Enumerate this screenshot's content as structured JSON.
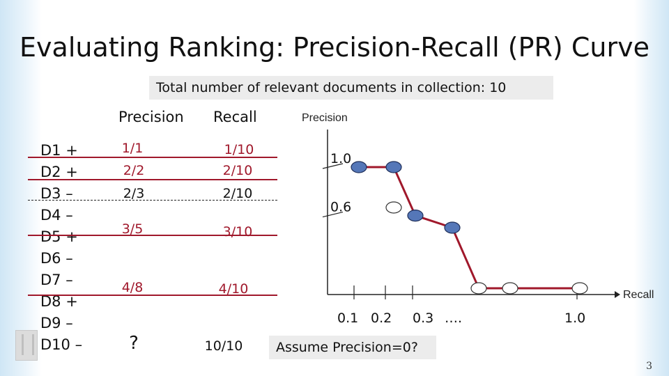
{
  "slide": {
    "title": "Evaluating Ranking: Precision-Recall (PR) Curve",
    "total_note": "Total  number of relevant documents in collection:  10",
    "assume_note": "Assume Precision=0?",
    "page_number": "3"
  },
  "table": {
    "precision_header": "Precision",
    "recall_header": "Recall",
    "docs": [
      "D1 +",
      "D2 +",
      "D3 –",
      "D4 –",
      "D5 +",
      "D6 –",
      "D7 –",
      "D8 +",
      "D9 –",
      "D10 –"
    ],
    "entries": [
      {
        "precision": "1/1",
        "recall": "1/10"
      },
      {
        "precision": "2/2",
        "recall": "2/10"
      },
      {
        "precision": "2/3",
        "recall": "2/10"
      },
      {
        "precision": "3/5",
        "recall": "3/10"
      },
      {
        "precision": "4/8",
        "recall": "4/10"
      },
      {
        "precision": "?",
        "recall": "10/10"
      }
    ]
  },
  "chart_data": {
    "type": "line",
    "xlabel": "Recall",
    "ylabel": "Precision",
    "x_tick_labels": [
      "0.1",
      "0.2",
      "0.3",
      "….",
      "1.0"
    ],
    "y_tick_labels": [
      "1.0",
      "0.6"
    ],
    "curve": {
      "x": [
        0.1,
        0.2,
        0.3,
        0.4,
        0.5,
        0.6,
        1.0
      ],
      "y": [
        1.0,
        1.0,
        0.6,
        0.5,
        0.0,
        0.0,
        0.0
      ]
    },
    "filled_points": [
      {
        "x": 0.1,
        "y": 1.0
      },
      {
        "x": 0.2,
        "y": 1.0
      },
      {
        "x": 0.3,
        "y": 0.6
      },
      {
        "x": 0.4,
        "y": 0.5
      }
    ],
    "open_points": [
      {
        "x": 0.2,
        "y": 0.6667
      },
      {
        "x": 0.5,
        "y": 0.0
      },
      {
        "x": 0.6,
        "y": 0.0
      },
      {
        "x": 1.0,
        "y": 0.0
      }
    ],
    "colors": {
      "curve": "#a0182b",
      "filled": "#5577b8",
      "open": "#ffffff",
      "axis": "#222222"
    }
  }
}
